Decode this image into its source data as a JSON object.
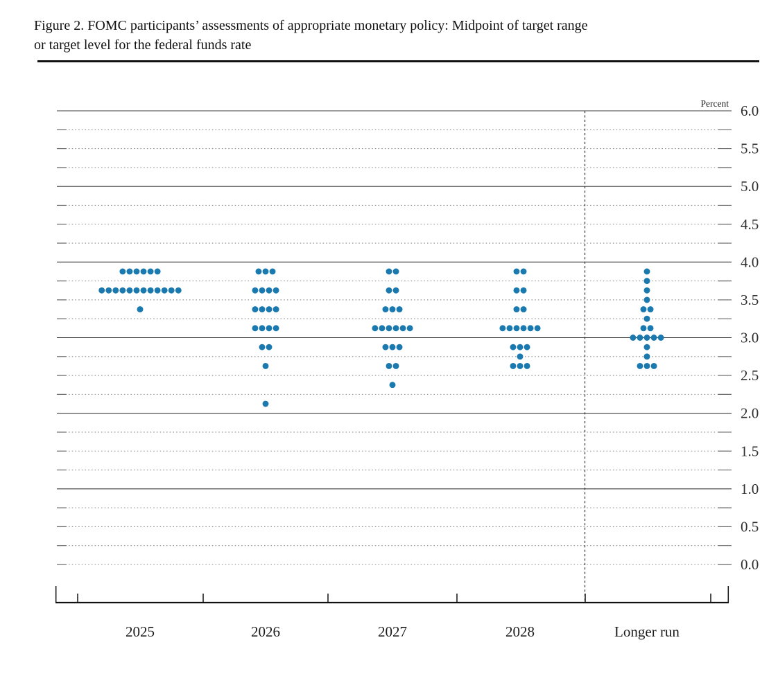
{
  "figure": {
    "title_line1": "Figure 2. FOMC participants’ assessments of appropriate monetary policy: Midpoint of target range",
    "title_line2": "or target level for the federal funds rate"
  },
  "chart_data": {
    "type": "scatter",
    "subtype": "fomc-dot-plot",
    "title": "FOMC participants’ assessments of appropriate monetary policy: Midpoint of target range or target level for the federal funds rate",
    "unit_label": "Percent",
    "ylim": [
      0.0,
      6.0
    ],
    "y_label_step": 0.5,
    "y_grid_step": 0.25,
    "grid_solid_at_integers": true,
    "y_tick_labels": [
      "6.0",
      "5.5",
      "5.0",
      "4.5",
      "4.0",
      "3.5",
      "3.0",
      "2.5",
      "2.0",
      "1.5",
      "1.0",
      "0.5",
      "0.0"
    ],
    "categories": [
      "2025",
      "2026",
      "2027",
      "2028",
      "Longer run"
    ],
    "separator_before_category": "Longer run",
    "dot_color": "#1a79af",
    "axis_color": "#3c3c3c",
    "dotted_grid_color": "#8a8a8a",
    "participants_per_column": 19,
    "series": [
      {
        "category": "2025",
        "dots": [
          {
            "rate": 3.875,
            "count": 6
          },
          {
            "rate": 3.625,
            "count": 12
          },
          {
            "rate": 3.375,
            "count": 1
          }
        ]
      },
      {
        "category": "2026",
        "dots": [
          {
            "rate": 3.875,
            "count": 3
          },
          {
            "rate": 3.625,
            "count": 4
          },
          {
            "rate": 3.375,
            "count": 4
          },
          {
            "rate": 3.125,
            "count": 4
          },
          {
            "rate": 2.875,
            "count": 2
          },
          {
            "rate": 2.625,
            "count": 1
          },
          {
            "rate": 2.125,
            "count": 1
          }
        ]
      },
      {
        "category": "2027",
        "dots": [
          {
            "rate": 3.875,
            "count": 2
          },
          {
            "rate": 3.625,
            "count": 2
          },
          {
            "rate": 3.375,
            "count": 3
          },
          {
            "rate": 3.125,
            "count": 6
          },
          {
            "rate": 2.875,
            "count": 3
          },
          {
            "rate": 2.625,
            "count": 2
          },
          {
            "rate": 2.375,
            "count": 1
          }
        ]
      },
      {
        "category": "2028",
        "dots": [
          {
            "rate": 3.875,
            "count": 2
          },
          {
            "rate": 3.625,
            "count": 2
          },
          {
            "rate": 3.375,
            "count": 2
          },
          {
            "rate": 3.125,
            "count": 6
          },
          {
            "rate": 2.875,
            "count": 3
          },
          {
            "rate": 2.75,
            "count": 1
          },
          {
            "rate": 2.625,
            "count": 3
          }
        ]
      },
      {
        "category": "Longer run",
        "dots": [
          {
            "rate": 3.875,
            "count": 1
          },
          {
            "rate": 3.75,
            "count": 1
          },
          {
            "rate": 3.625,
            "count": 1
          },
          {
            "rate": 3.5,
            "count": 1
          },
          {
            "rate": 3.375,
            "count": 2
          },
          {
            "rate": 3.25,
            "count": 1
          },
          {
            "rate": 3.125,
            "count": 2
          },
          {
            "rate": 3.0,
            "count": 5
          },
          {
            "rate": 2.875,
            "count": 1
          },
          {
            "rate": 2.75,
            "count": 1
          },
          {
            "rate": 2.625,
            "count": 3
          }
        ]
      }
    ]
  }
}
